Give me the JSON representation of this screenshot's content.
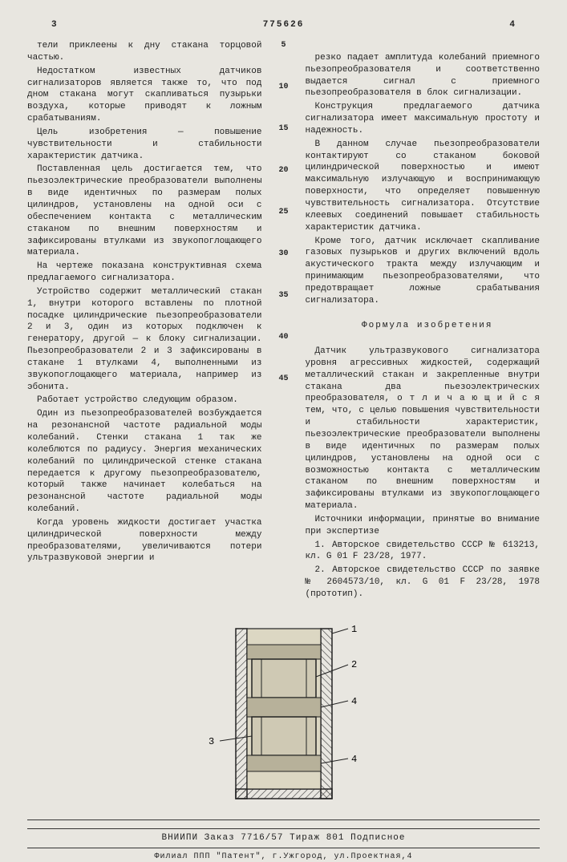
{
  "doc_number": "775626",
  "page_left": "3",
  "page_right": "4",
  "left_column": [
    "тели приклеены к дну стакана торцовой частью.",
    "Недостатком известных датчиков сигнализаторов является также то, что под дном стакана могут скапливаться пузырьки воздуха, которые приводят к ложным срабатываниям.",
    "Цель изобретения — повышение чувствительности и стабильности характеристик датчика.",
    "Поставленная цель достигается тем, что пьезоэлектрические преобразователи выполнены в виде идентичных по размерам полых цилиндров, установлены на одной оси с обеспечением контакта с металлическим стаканом по внешним поверхностям и зафиксированы втулками из звукопоглощающего материала.",
    "На чертеже показана конструктивная схема предлагаемого сигнализатора.",
    "Устройство содержит металлический стакан 1, внутри которого вставлены по плотной посадке цилиндрические пьезопреобразователи 2 и 3, один из которых подключен к генератору, другой — к блоку сигнализации. Пьезопреобразователи 2 и 3 зафиксированы в стакане 1 втулками 4, выполненными из звукопоглощающего материала, например из эбонита.",
    "Работает устройство следующим образом.",
    "Один из пьезопреобразователей возбуждается на резонансной частоте радиальной моды колебаний. Стенки стакана 1 так же колеблются по радиусу. Энергия механических колебаний по цилиндрической стенке стакана передается к другому пьезопреобразователю, который также начинает колебаться на резонансной частоте радиальной моды колебаний.",
    "Когда уровень жидкости достигает участка цилиндрической поверхности между преобразователями, увеличиваются потери ультразвуковой энергии и"
  ],
  "line_numbers": [
    "5",
    "10",
    "15",
    "20",
    "25",
    "30",
    "35",
    "40",
    "45"
  ],
  "right_column": [
    "резко падает амплитуда колебаний приемного пьезопреобразователя и соответственно выдается сигнал с приемного пьезопреобразователя в блок сигнализации.",
    "Конструкция предлагаемого датчика сигнализатора имеет максимальную простоту и надежность.",
    "В данном случае пьезопреобразователи контактируют со стаканом боковой цилиндрической поверхностью и имеют максимальную излучающую и воспринимающую поверхности, что определяет повышенную чувствительность сигнализатора. Отсутствие клеевых соединений повышает стабильность характеристик датчика.",
    "Кроме того, датчик исключает скапливание газовых пузырьков и других включений вдоль акустического тракта между излучающим и принимающим пьезопреобразователями, что предотвращает ложные срабатывания сигнализатора."
  ],
  "formula_title": "Формула изобретения",
  "formula": [
    "Датчик ультразвукового сигнализатора уровня агрессивных жидкостей, содержащий металлический стакан и закрепленные внутри стакана два пьезоэлектрических преобразователя, о т л и ч а ю щ и й с я  тем, что, с целью повышения чувствительности и стабильности характеристик, пьезоэлектрические преобразователи выполнены в виде идентичных по размерам полых цилиндров, установлены на одной оси с возможностью контакта с металлическим стаканом по внешним поверхностям и зафиксированы втулками из звукопоглощающего материала.",
    "Источники информации, принятые во внимание при экспертизе",
    "1. Авторское свидетельство СССР № 613213, кл. G 01 F 23/28, 1977.",
    "2. Авторское свидетельство СССР по заявке № 2604573/10, кл. G 01 F 23/28, 1978 (прототип)."
  ],
  "figure": {
    "labels": [
      "1",
      "2",
      "4",
      "4",
      "3"
    ],
    "stroke": "#222",
    "hatch": "#333",
    "fill_bushing": "#b7b19a",
    "fill_piezo": "#cfc9b4",
    "fill_inner": "#dcd7c3"
  },
  "footer_line1": "ВНИИПИ  Заказ 7716/57  Тираж 801   Подписное",
  "footer_line2": "Филиал ППП \"Патент\", г.Ужгород, ул.Проектная,4"
}
